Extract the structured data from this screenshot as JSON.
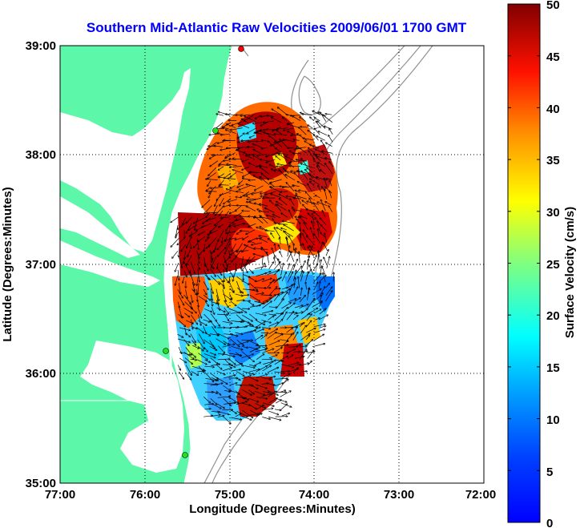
{
  "title": "Southern Mid-Atlantic Raw Velocities 2009/06/01 1700 GMT",
  "axes": {
    "x_label": "Longitude (Degrees:Minutes)",
    "y_label": "Latitude (Degrees:Minutes)",
    "x_ticks": [
      "77:00",
      "76:00",
      "75:00",
      "74:00",
      "73:00",
      "72:00"
    ],
    "y_ticks": [
      "39:00",
      "38:00",
      "37:00",
      "36:00",
      "35:00"
    ],
    "lon_range": [
      -77,
      -72
    ],
    "lat_range": [
      35,
      39
    ],
    "grid": "dotted"
  },
  "colorbar": {
    "label": "Surface Velocity (cm/s)",
    "ticks": [
      "50",
      "45",
      "40",
      "35",
      "30",
      "25",
      "20",
      "15",
      "10",
      "5",
      "0"
    ],
    "range": [
      0,
      50
    ],
    "colormap": "jet"
  },
  "colors": {
    "land": "#5cf7a8",
    "water": "#ffffff",
    "bathymetry": "#909090",
    "title": "#0000ff",
    "grid": "#000000"
  },
  "stations": [
    {
      "name": "station-cape-henlopen",
      "lon": -74.85,
      "lat": 39.0,
      "color": "#ff0000"
    },
    {
      "name": "station-delmarva",
      "lon": -75.15,
      "lat": 38.22,
      "color": "#22dd22"
    },
    {
      "name": "station-duck",
      "lon": -75.72,
      "lat": 36.18,
      "color": "#22dd22"
    },
    {
      "name": "station-hatteras",
      "lon": -75.5,
      "lat": 35.25,
      "color": "#22dd22"
    }
  ]
}
